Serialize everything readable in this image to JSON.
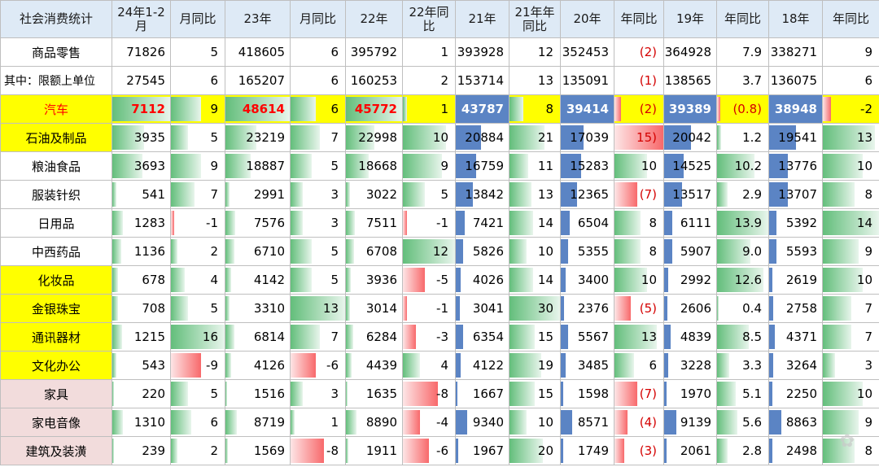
{
  "headers": [
    "社会消费统计",
    "24年1-2月",
    "月同比",
    "23年",
    "月同比",
    "22年",
    "22年同比",
    "21年",
    "21年年同比",
    "20年",
    "年同比",
    "19年",
    "年同比",
    "18年",
    "年同比"
  ],
  "rows": [
    {
      "label": "商品零售",
      "style": "white",
      "cells": [
        "71826",
        "5",
        "418605",
        "6",
        "395792",
        "1",
        "393928",
        "12",
        "352453",
        "(2)",
        "364928",
        "7.9",
        "338271",
        "9"
      ]
    },
    {
      "label": "其中：限额上单位",
      "style": "white-left",
      "cells": [
        "27545",
        "6",
        "165207",
        "6",
        "160253",
        "2",
        "153714",
        "13",
        "135091",
        "(1)",
        "138565",
        "3.7",
        "136075",
        "6"
      ]
    },
    {
      "label": "汽车",
      "style": "highlight",
      "cells": [
        "7112",
        "9",
        "48614",
        "6",
        "45772",
        "1",
        "43787",
        "8",
        "39414",
        "(2)",
        "39389",
        "(0.8)",
        "38948",
        "-2"
      ]
    },
    {
      "label": "石油及制品",
      "style": "yellow",
      "cells": [
        "3935",
        "5",
        "23219",
        "7",
        "22998",
        "10",
        "20884",
        "21",
        "17039",
        "15)",
        "20042",
        "1.2",
        "19541",
        "13"
      ]
    },
    {
      "label": "粮油食品",
      "style": "white",
      "cells": [
        "3693",
        "9",
        "18887",
        "5",
        "18668",
        "9",
        "16759",
        "11",
        "15283",
        "10",
        "14525",
        "10.2",
        "13776",
        "10"
      ]
    },
    {
      "label": "服装针织",
      "style": "white",
      "cells": [
        "541",
        "7",
        "2991",
        "3",
        "3022",
        "5",
        "13842",
        "13",
        "12365",
        "(7)",
        "13517",
        "2.9",
        "13707",
        "8"
      ]
    },
    {
      "label": "日用品",
      "style": "white",
      "cells": [
        "1283",
        "-1",
        "7576",
        "3",
        "7511",
        "-1",
        "7421",
        "14",
        "6504",
        "8",
        "6111",
        "13.9",
        "5392",
        "14"
      ]
    },
    {
      "label": "中西药品",
      "style": "white",
      "cells": [
        "1136",
        "2",
        "6710",
        "5",
        "6708",
        "12",
        "5826",
        "10",
        "5355",
        "8",
        "5907",
        "9.0",
        "5593",
        "9"
      ]
    },
    {
      "label": "化妆品",
      "style": "yellow",
      "cells": [
        "678",
        "4",
        "4142",
        "5",
        "3936",
        "-5",
        "4026",
        "14",
        "3400",
        "10",
        "2992",
        "12.6",
        "2619",
        "10"
      ]
    },
    {
      "label": "金银珠宝",
      "style": "yellow",
      "cells": [
        "708",
        "5",
        "3310",
        "13",
        "3014",
        "-1",
        "3041",
        "30",
        "2376",
        "(5)",
        "2606",
        "0.4",
        "2758",
        "7"
      ]
    },
    {
      "label": "通讯器材",
      "style": "yellow",
      "cells": [
        "1215",
        "16",
        "6814",
        "7",
        "6284",
        "-3",
        "6354",
        "15",
        "5567",
        "13",
        "4839",
        "8.5",
        "4371",
        "7"
      ]
    },
    {
      "label": "文化办公",
      "style": "yellow",
      "cells": [
        "543",
        "-9",
        "4126",
        "-6",
        "4439",
        "4",
        "4122",
        "19",
        "3485",
        "6",
        "3228",
        "3.3",
        "3264",
        "3"
      ]
    },
    {
      "label": "家具",
      "style": "pink",
      "cells": [
        "220",
        "5",
        "1516",
        "3",
        "1635",
        "-8",
        "1667",
        "15",
        "1598",
        "(7)",
        "1970",
        "5.1",
        "2250",
        "10"
      ]
    },
    {
      "label": "家电音像",
      "style": "pink",
      "cells": [
        "1310",
        "6",
        "8719",
        "1",
        "8890",
        "-4",
        "9340",
        "10",
        "8571",
        "(4)",
        "9139",
        "5.6",
        "8863",
        "9"
      ]
    },
    {
      "label": "建筑及装潢",
      "style": "pink",
      "cells": [
        "239",
        "2",
        "1569",
        "-8",
        "1911",
        "-6",
        "1967",
        "20",
        "1749",
        "(3)",
        "2061",
        "2.8",
        "2498",
        "8"
      ]
    }
  ]
}
